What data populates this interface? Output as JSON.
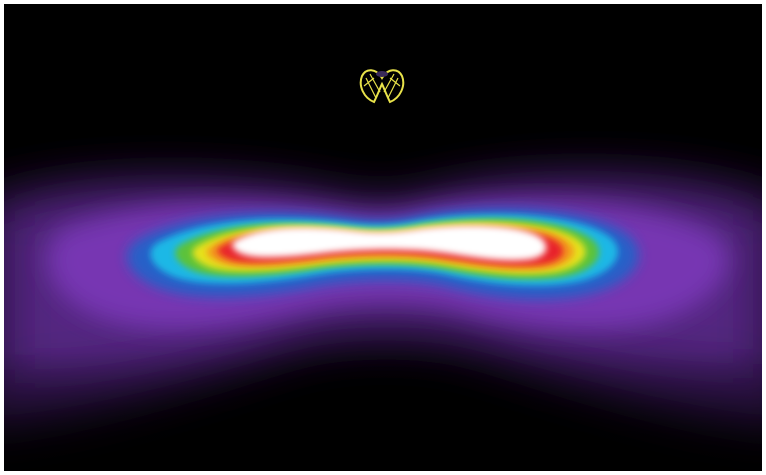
{
  "image": {
    "subject": "light-distribution-plot",
    "colors": {
      "background": "#000000",
      "frame": "#ffffff",
      "core": "#ffffff",
      "red": "#e8202a",
      "orange": "#f39a1e",
      "yellow": "#e6e21c",
      "green": "#5cc23a",
      "cyan": "#1fb8e6",
      "blue": "#2860c8",
      "purple": "#7a38b8",
      "violet": "#5a2a8a",
      "luminaire": "#e8e24a"
    }
  }
}
